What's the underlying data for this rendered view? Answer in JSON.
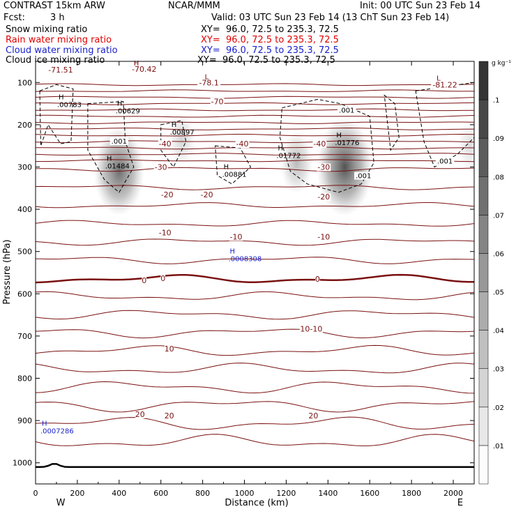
{
  "header": {
    "model": "CONTRAST 15km ARW",
    "center": "NCAR/MMM",
    "init": "Init: 00 UTC Sun 23 Feb 14",
    "fcst_label": "Fcst:",
    "fcst_value": "3 h",
    "valid": "Valid: 03 UTC Sun 23 Feb 14 (13 ChT Sun 23 Feb 14)"
  },
  "fields": [
    {
      "name": "Snow mixing ratio",
      "xy": "XY=  96.0, 72.5 to 235.3, 72.5",
      "color": "#000000"
    },
    {
      "name": "Rain water mixing ratio",
      "xy": "XY=  96.0, 72.5 to 235.3, 72.5",
      "color": "#e00000"
    },
    {
      "name": "Cloud water mixing ratio",
      "xy": "XY=  96.0, 72.5 to 235.3, 72.5",
      "color": "#1a22cc"
    },
    {
      "name": "Cloud ice mixing ratio",
      "xy": "XY=  96.0, 72.5 to 235.3, 72.5",
      "color": "#000000"
    }
  ],
  "chart_data": {
    "type": "heatmap",
    "xlabel": "Distance (km)",
    "ylabel": "Pressure (hPa)",
    "xlim": [
      0,
      2100
    ],
    "ylim": [
      1050,
      50
    ],
    "x_ticks": [
      0,
      200,
      400,
      600,
      800,
      1000,
      1200,
      1400,
      1600,
      1800,
      2000
    ],
    "y_ticks": [
      100,
      200,
      300,
      400,
      500,
      600,
      700,
      800,
      900,
      1000
    ],
    "x_end_labels": {
      "left": "W",
      "right": "E"
    },
    "colorbar": {
      "unit": "g kg⁻¹",
      "levels": [
        ".01",
        ".02",
        ".03",
        ".04",
        ".05",
        ".06",
        ".07",
        ".08",
        ".09",
        ".1"
      ]
    },
    "snow_blobs": [
      {
        "x": 400,
        "p": 310,
        "peak": 0.085
      },
      {
        "x": 700,
        "p": 235,
        "peak": 0.025
      },
      {
        "x": 1250,
        "p": 290,
        "peak": 0.04
      },
      {
        "x": 1480,
        "p": 300,
        "peak": 0.1
      },
      {
        "x": 2080,
        "p": 250,
        "peak": 0.02
      }
    ],
    "temperature_contours": [
      {
        "label": "-70",
        "p": 150
      },
      {
        "label": "-40",
        "p": 245
      },
      {
        "label": "-30",
        "p": 300
      },
      {
        "label": "-20",
        "p": 360
      },
      {
        "label": "-10",
        "p": 455
      },
      {
        "label": "0",
        "p": 565,
        "bold": true
      },
      {
        "label": "10",
        "p": 720
      },
      {
        "label": "20",
        "p": 880
      }
    ],
    "temperature_labels": [
      {
        "text": "-71.51",
        "x": 120,
        "p": 70
      },
      {
        "text": "-70.42",
        "x": 520,
        "p": 68
      },
      {
        "text": "-78.1",
        "x": 830,
        "p": 100
      },
      {
        "text": "-81.22",
        "x": 1960,
        "p": 105
      },
      {
        "text": "-70",
        "x": 870,
        "p": 145
      },
      {
        "text": "-40",
        "x": 620,
        "p": 245
      },
      {
        "text": "-40",
        "x": 990,
        "p": 245
      },
      {
        "text": "-40",
        "x": 1360,
        "p": 245
      },
      {
        "text": "-30",
        "x": 600,
        "p": 300
      },
      {
        "text": "-30",
        "x": 1380,
        "p": 300
      },
      {
        "text": "-20",
        "x": 630,
        "p": 365
      },
      {
        "text": "-20",
        "x": 820,
        "p": 365
      },
      {
        "text": "-20",
        "x": 1380,
        "p": 370
      },
      {
        "text": "-10",
        "x": 620,
        "p": 455
      },
      {
        "text": "-10",
        "x": 960,
        "p": 465
      },
      {
        "text": "-10",
        "x": 1380,
        "p": 465
      },
      {
        "text": "0",
        "x": 520,
        "p": 568
      },
      {
        "text": "0",
        "x": 610,
        "p": 563
      },
      {
        "text": "0",
        "x": 1350,
        "p": 565
      },
      {
        "text": "10-10",
        "x": 1320,
        "p": 683
      },
      {
        "text": "10",
        "x": 640,
        "p": 730
      },
      {
        "text": "20",
        "x": 500,
        "p": 885
      },
      {
        "text": "20",
        "x": 640,
        "p": 888
      },
      {
        "text": "20",
        "x": 1330,
        "p": 888
      }
    ],
    "extrema_labels": [
      {
        "mark": "L",
        "value": "",
        "x": 810,
        "p": 92,
        "color": "#7a0000"
      },
      {
        "mark": "H",
        "value": "",
        "x": 470,
        "p": 60,
        "color": "#7a0000"
      },
      {
        "mark": "L",
        "value": "",
        "x": 1920,
        "p": 95,
        "color": "#7a0000"
      },
      {
        "mark": "H",
        "value": ".00783",
        "x": 110,
        "p": 140,
        "color": "#000000"
      },
      {
        "mark": "H",
        "value": ".00629",
        "x": 390,
        "p": 155,
        "color": "#000000"
      },
      {
        "mark": "H",
        "value": ".00897",
        "x": 650,
        "p": 205,
        "color": "#000000"
      },
      {
        "mark": "H",
        "value": ".01484",
        "x": 340,
        "p": 285,
        "color": "#000000"
      },
      {
        "mark": "H",
        "value": ".00881",
        "x": 900,
        "p": 305,
        "color": "#000000"
      },
      {
        "mark": "H",
        "value": ".01772",
        "x": 1160,
        "p": 260,
        "color": "#000000"
      },
      {
        "mark": "H",
        "value": ".01776",
        "x": 1440,
        "p": 230,
        "color": "#000000"
      },
      {
        "mark": "H",
        "value": ".0008308",
        "x": 930,
        "p": 505,
        "color": "#1a22cc"
      },
      {
        "mark": "H",
        "value": ".0007286",
        "x": 30,
        "p": 912,
        "color": "#1a22cc"
      }
    ],
    "ice_labels": [
      {
        "text": ".001",
        "x": 1490,
        "p": 165
      },
      {
        "text": ".001",
        "x": 400,
        "p": 238
      },
      {
        "text": ".001",
        "x": 1570,
        "p": 320
      },
      {
        "text": ".001",
        "x": 1960,
        "p": 285
      }
    ]
  }
}
